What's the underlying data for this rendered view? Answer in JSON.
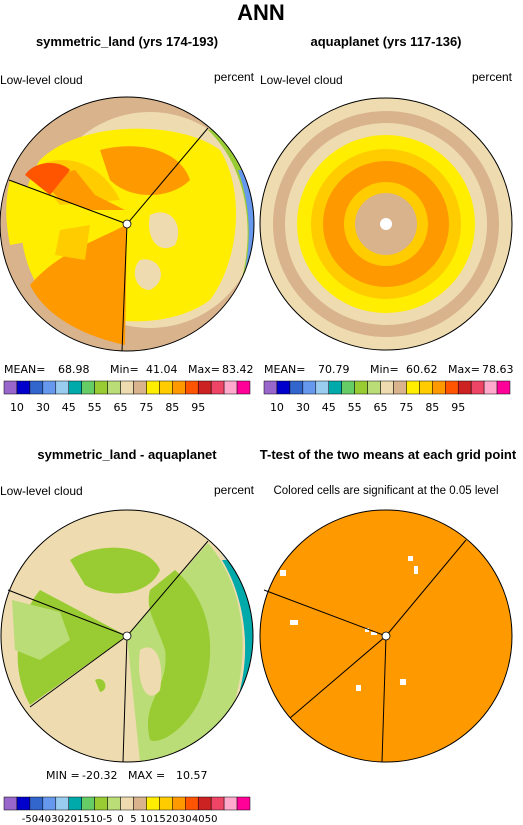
{
  "figure_title": "ANN",
  "panels": [
    {
      "title": "symmetric_land (yrs 174-193)",
      "left_label": "Low-level cloud",
      "right_label": "percent",
      "stats": {
        "mean_label": "MEAN=",
        "mean": "68.98",
        "min_label": "Min=",
        "min": "41.04",
        "max_label": "Max=",
        "max": "83.42"
      }
    },
    {
      "title": "aquaplanet (yrs 117-136)",
      "left_label": "Low-level cloud",
      "right_label": "percent",
      "stats": {
        "mean_label": "MEAN=",
        "mean": "70.79",
        "min_label": "Min=",
        "min": "60.62",
        "max_label": "Max=",
        "max": "78.63"
      }
    },
    {
      "title": "symmetric_land - aquaplanet",
      "left_label": "Low-level cloud",
      "right_label": "percent",
      "stats": {
        "min_label": "MIN =",
        "min": "-20.32",
        "max_label": "MAX =",
        "max": "10.57"
      }
    },
    {
      "title": "T-test of the two means at each grid point",
      "subtitle": "Colored cells are significant at the 0.05 level"
    }
  ],
  "colorbar_abs": {
    "colors": [
      "#9966cc",
      "#0000cc",
      "#3366cc",
      "#6699ee",
      "#99ccee",
      "#00aaaa",
      "#66cc66",
      "#99cc33",
      "#bbdd77",
      "#eedcb0",
      "#d9b38c",
      "#ffee00",
      "#ffcc00",
      "#ff9900",
      "#ff5500",
      "#cc2222",
      "#ee4466",
      "#ffaacc",
      "#ff0099"
    ],
    "tick_labels": [
      "10",
      "30",
      "45",
      "55",
      "65",
      "75",
      "85",
      "95"
    ]
  },
  "colorbar_diff": {
    "colors": [
      "#9966cc",
      "#0000cc",
      "#3366cc",
      "#6699ee",
      "#99ccee",
      "#00aaaa",
      "#66cc66",
      "#99cc33",
      "#bbdd77",
      "#eedcb0",
      "#d9b38c",
      "#ffee00",
      "#ffcc00",
      "#ff9900",
      "#ff5500",
      "#cc2222",
      "#ee4466",
      "#ffaacc",
      "#ff0099"
    ],
    "tick_labels": [
      "-50",
      "-40",
      "-30",
      "-20",
      "-15",
      "-10",
      "-5",
      "0",
      "5",
      "10",
      "15",
      "20",
      "30",
      "40",
      "50"
    ]
  },
  "chart_data": [
    {
      "type": "heatmap",
      "projection": "polar",
      "title": "symmetric_land (yrs 174-193)",
      "variable": "Low-level cloud",
      "units": "percent",
      "mean": 68.98,
      "min": 41.04,
      "max": 83.42
    },
    {
      "type": "heatmap",
      "projection": "polar",
      "title": "aquaplanet (yrs 117-136)",
      "variable": "Low-level cloud",
      "units": "percent",
      "mean": 70.79,
      "min": 60.62,
      "max": 78.63
    },
    {
      "type": "heatmap",
      "projection": "polar",
      "title": "symmetric_land - aquaplanet",
      "variable": "Low-level cloud",
      "units": "percent",
      "min": -20.32,
      "max": 10.57
    },
    {
      "type": "heatmap",
      "projection": "polar",
      "title": "T-test of the two means at each grid point",
      "note": "Colored cells are significant at the 0.05 level"
    }
  ]
}
